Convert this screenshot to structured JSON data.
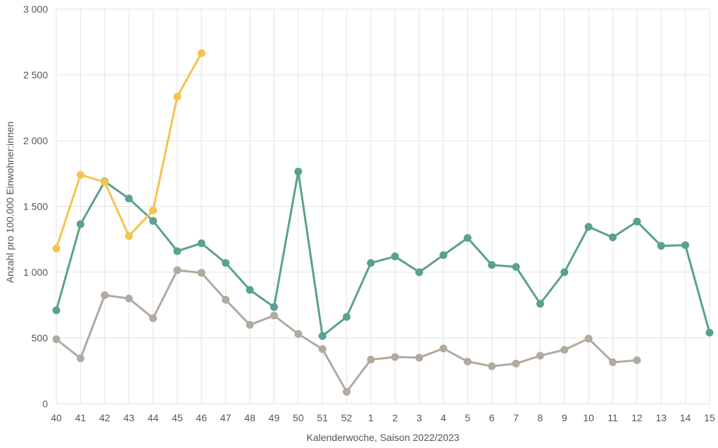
{
  "chart_data": {
    "type": "line",
    "xlabel": "Kalenderwoche, Saison 2022/2023",
    "ylabel": "Anzahl pro 100.000 Einwohner:innen",
    "ylim": [
      0,
      3000
    ],
    "y_ticks": [
      0,
      500,
      1000,
      1500,
      2000,
      2500,
      3000
    ],
    "y_tick_labels": [
      "0",
      "500",
      "1 000",
      "1 500",
      "2 000",
      "2 500",
      "3 000"
    ],
    "categories": [
      "40",
      "41",
      "42",
      "43",
      "44",
      "45",
      "46",
      "47",
      "48",
      "49",
      "50",
      "51",
      "52",
      "1",
      "2",
      "3",
      "4",
      "5",
      "6",
      "7",
      "8",
      "9",
      "10",
      "11",
      "12",
      "13",
      "14",
      "15"
    ],
    "grid": true,
    "legend": "none",
    "series": [
      {
        "color": "#5aa18f",
        "values": [
          710,
          1365,
          1690,
          1560,
          1390,
          1160,
          1220,
          1070,
          865,
          735,
          1765,
          515,
          660,
          1070,
          1120,
          1000,
          1130,
          1260,
          1055,
          1040,
          760,
          1000,
          1345,
          1265,
          1385,
          1200,
          1205,
          540
        ]
      },
      {
        "color": "#b2a99f",
        "values": [
          490,
          345,
          825,
          800,
          650,
          1015,
          995,
          790,
          600,
          670,
          530,
          415,
          90,
          335,
          355,
          350,
          420,
          320,
          285,
          305,
          365,
          410,
          495,
          315,
          330,
          null,
          null,
          null
        ]
      },
      {
        "color": "#f5c34e",
        "values": [
          1180,
          1740,
          1685,
          1275,
          1470,
          2335,
          2665,
          null,
          null,
          null,
          null,
          null,
          null,
          null,
          null,
          null,
          null,
          null,
          null,
          null,
          null,
          null,
          null,
          null,
          null,
          null,
          null,
          null
        ]
      }
    ]
  }
}
